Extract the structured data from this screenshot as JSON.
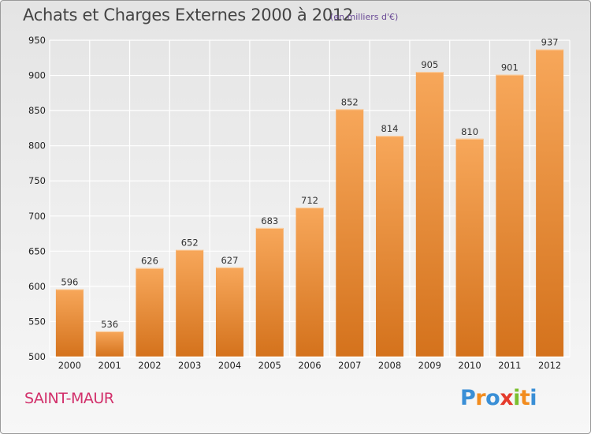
{
  "header": {
    "title": "Achats et Charges Externes 2000 à 2012",
    "unit": "(en milliers d'€)"
  },
  "footer": {
    "commune": "SAINT-MAUR",
    "logo": {
      "letters": [
        "P",
        "r",
        "o",
        "x",
        "i",
        "t",
        "i"
      ],
      "colors": [
        "#3a8fd6",
        "#f28c1e",
        "#3a8fd6",
        "#e53b2c",
        "#7bbf2f",
        "#f28c1e",
        "#3a8fd6"
      ]
    }
  },
  "colors": {
    "bar_top": "#f7a75a",
    "bar_bottom": "#d4721c",
    "grid": "#ffffff",
    "axis_text": "#222222"
  },
  "chart_data": {
    "type": "bar",
    "title": "Achats et Charges Externes 2000 à 2012",
    "subtitle": "(en milliers d'€)",
    "categories": [
      "2000",
      "2001",
      "2002",
      "2003",
      "2004",
      "2005",
      "2006",
      "2007",
      "2008",
      "2009",
      "2010",
      "2011",
      "2012"
    ],
    "values": [
      596,
      536,
      626,
      652,
      627,
      683,
      712,
      852,
      814,
      905,
      810,
      901,
      937
    ],
    "ylim": [
      500,
      950
    ],
    "yticks": [
      500,
      550,
      600,
      650,
      700,
      750,
      800,
      850,
      900,
      950
    ],
    "grid": true,
    "xlabel": "",
    "ylabel": ""
  }
}
